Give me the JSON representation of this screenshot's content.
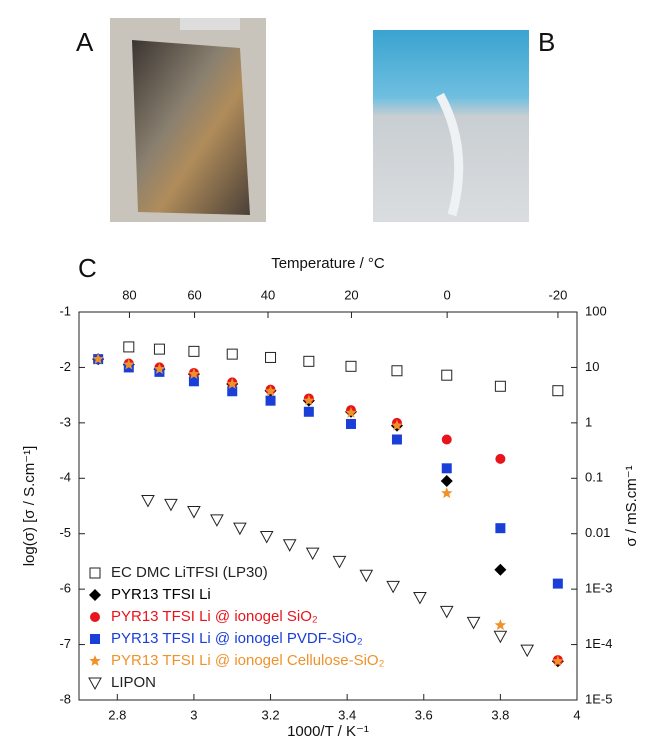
{
  "panel_labels": [
    "A",
    "B",
    "C"
  ],
  "chart_data": {
    "type": "scatter",
    "xlabel": "1000/T  / K⁻¹",
    "ylabel": "log(σ)  [σ / S.cm⁻¹]",
    "y2label": "σ / mS.cm⁻¹",
    "top_axis": {
      "label": "Temperature  / °C",
      "ticks": [
        80,
        60,
        40,
        20,
        0,
        -20
      ]
    },
    "xlim": [
      2.7,
      4.0
    ],
    "xticks": [
      2.8,
      3.0,
      3.2,
      3.4,
      3.6,
      3.8,
      4.0
    ],
    "ylim": [
      -8,
      -1
    ],
    "yticks": [
      -1,
      -2,
      -3,
      -4,
      -5,
      -6,
      -7,
      -8
    ],
    "y2lim": [
      1e-05,
      100
    ],
    "y2log": true,
    "y2ticks": [
      100,
      10,
      1,
      0.1,
      0.01,
      {
        "value": 0.001,
        "label": "1E-3"
      },
      {
        "value": 0.0001,
        "label": "1E-4"
      },
      {
        "value": 1e-05,
        "label": "1E-5"
      }
    ],
    "legend": "lower left",
    "series": [
      {
        "name": "EC DMC LiTFSI (LP30)",
        "color": "#222222",
        "marker": "square-open",
        "x": [
          2.83,
          2.91,
          3.0,
          3.1,
          3.2,
          3.3,
          3.41,
          3.53,
          3.66,
          3.8,
          3.95
        ],
        "values": [
          -1.63,
          -1.67,
          -1.71,
          -1.76,
          -1.82,
          -1.89,
          -1.98,
          -2.06,
          -2.14,
          -2.34,
          -2.42
        ]
      },
      {
        "name": "PYR13 TFSI Li",
        "color": "#000000",
        "marker": "diamond",
        "x": [
          2.75,
          2.83,
          2.91,
          3.0,
          3.1,
          3.2,
          3.3,
          3.41,
          3.53,
          3.66,
          3.8,
          3.95
        ],
        "values": [
          -1.85,
          -1.95,
          -2.03,
          -2.12,
          -2.3,
          -2.42,
          -2.6,
          -2.8,
          -3.05,
          -4.05,
          -5.65,
          -7.3
        ]
      },
      {
        "name": "PYR13 TFSI Li @ ionogel SiO₂",
        "color": "#e8141c",
        "marker": "circle",
        "x": [
          2.75,
          2.83,
          2.91,
          3.0,
          3.1,
          3.2,
          3.3,
          3.41,
          3.53,
          3.66,
          3.8,
          3.95
        ],
        "values": [
          -1.85,
          -1.93,
          -2.0,
          -2.1,
          -2.27,
          -2.4,
          -2.56,
          -2.77,
          -3.0,
          -3.3,
          -3.65,
          -7.28
        ]
      },
      {
        "name": "PYR13 TFSI Li @ ionogel PVDF-SiO₂",
        "color": "#1a3fd8",
        "marker": "square",
        "x": [
          2.75,
          2.83,
          2.91,
          3.0,
          3.1,
          3.2,
          3.3,
          3.41,
          3.53,
          3.66,
          3.8,
          3.95
        ],
        "values": [
          -1.85,
          -2.0,
          -2.08,
          -2.25,
          -2.43,
          -2.6,
          -2.8,
          -3.02,
          -3.3,
          -3.82,
          -4.9,
          -5.9
        ]
      },
      {
        "name": "PYR13 TFSI Li @ ionogel Cellulose-SiO₂",
        "color": "#f0922a",
        "marker": "star",
        "x": [
          2.75,
          2.83,
          2.91,
          3.0,
          3.1,
          3.2,
          3.3,
          3.41,
          3.53,
          3.66,
          3.8,
          3.95
        ],
        "values": [
          -1.85,
          -1.95,
          -2.03,
          -2.12,
          -2.3,
          -2.43,
          -2.6,
          -2.82,
          -3.05,
          -4.27,
          -6.65,
          -7.3
        ]
      },
      {
        "name": "LIPON",
        "color": "#222222",
        "marker": "triangle-down-open",
        "x": [
          2.88,
          2.94,
          3.0,
          3.06,
          3.12,
          3.19,
          3.25,
          3.31,
          3.38,
          3.45,
          3.52,
          3.59,
          3.66,
          3.73,
          3.8,
          3.87
        ],
        "values": [
          -4.4,
          -4.47,
          -4.6,
          -4.75,
          -4.9,
          -5.05,
          -5.2,
          -5.35,
          -5.5,
          -5.75,
          -5.95,
          -6.15,
          -6.4,
          -6.6,
          -6.85,
          -7.1
        ]
      }
    ]
  }
}
